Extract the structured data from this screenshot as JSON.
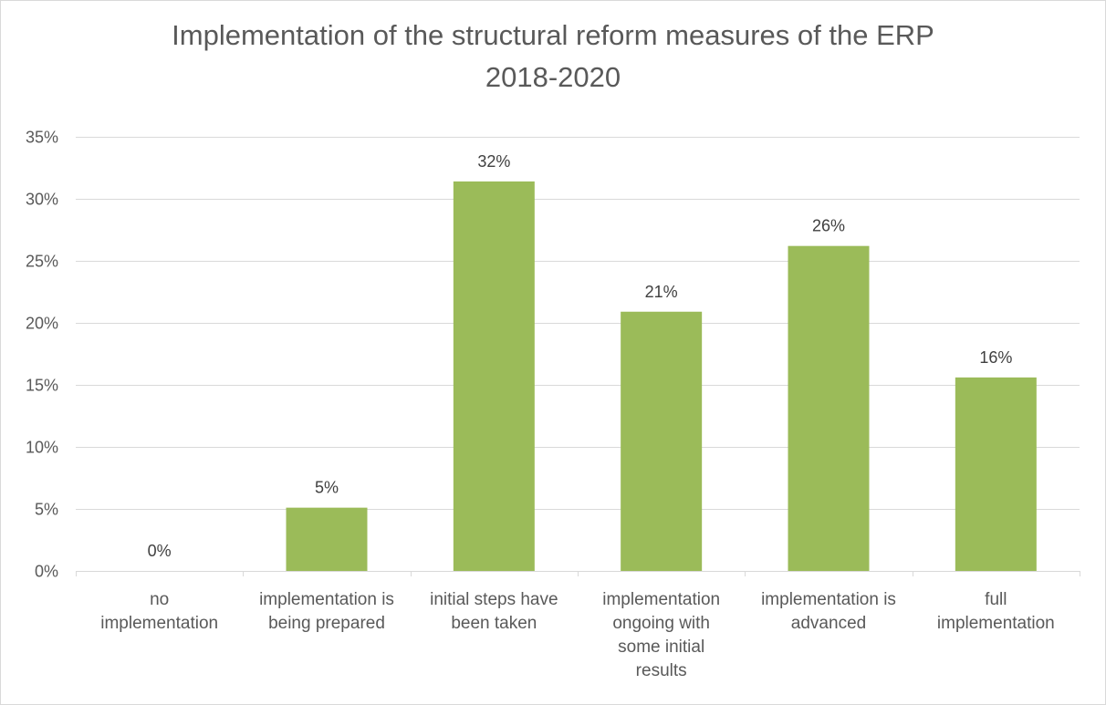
{
  "chart_data": {
    "type": "bar",
    "title_lines": [
      "Implementation of the structural reform measures of the ERP",
      "2018-2020"
    ],
    "categories": [
      [
        "no",
        "implementation"
      ],
      [
        "implementation is",
        "being prepared"
      ],
      [
        "initial steps have",
        "been taken"
      ],
      [
        "implementation",
        "ongoing with",
        "some initial",
        "results"
      ],
      [
        "implementation is",
        "advanced"
      ],
      [
        "full",
        "implementation"
      ]
    ],
    "values": [
      0,
      5,
      32,
      21,
      26,
      16
    ],
    "plotted_values": [
      0,
      5.1,
      31.4,
      20.9,
      26.2,
      15.6
    ],
    "data_labels": [
      "0%",
      "5%",
      "32%",
      "21%",
      "26%",
      "16%"
    ],
    "yticks": [
      "0%",
      "5%",
      "10%",
      "15%",
      "20%",
      "25%",
      "30%",
      "35%"
    ],
    "ylim": [
      0,
      35
    ],
    "bar_color": "#9bbb59",
    "grid": true,
    "legend": "none"
  }
}
